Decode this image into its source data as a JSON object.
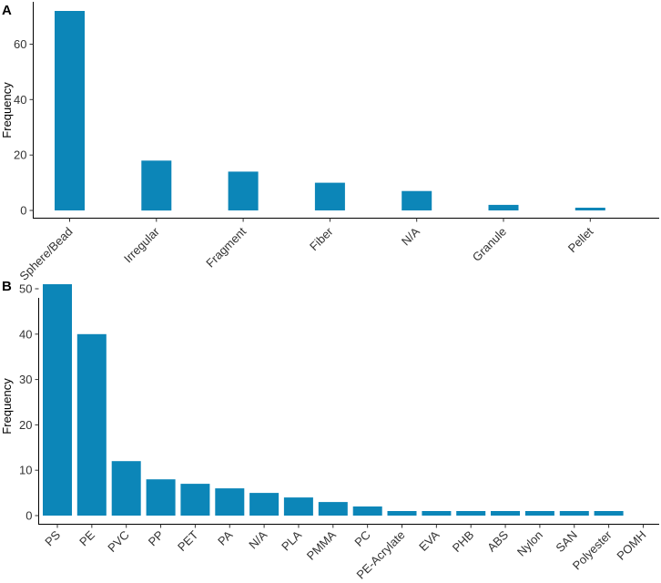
{
  "chart_data": [
    {
      "panel_label": "A",
      "type": "bar",
      "title": "",
      "xlabel": "",
      "ylabel": "Frequency",
      "ylim": [
        0,
        72
      ],
      "yticks": [
        0,
        20,
        40,
        60
      ],
      "grid": false,
      "categories": [
        "Sphere/Bead",
        "Irregular",
        "Fragment",
        "Fiber",
        "N/A",
        "Granule",
        "Pellet"
      ],
      "values": [
        72,
        18,
        14,
        10,
        7,
        2,
        1
      ],
      "color": "#0c86b8"
    },
    {
      "panel_label": "B",
      "type": "bar",
      "title": "",
      "xlabel": "",
      "ylabel": "Frequency",
      "ylim": [
        0,
        51
      ],
      "yticks": [
        0,
        10,
        20,
        30,
        40,
        50
      ],
      "grid": false,
      "categories": [
        "PS",
        "PE",
        "PVC",
        "PP",
        "PET",
        "PA",
        "N/A",
        "PLA",
        "PMMA",
        "PC",
        "PE-Acrylate",
        "EVA",
        "PHB",
        "ABS",
        "Nylon",
        "SAN",
        "Polyester",
        "POMH"
      ],
      "values": [
        51,
        40,
        12,
        8,
        7,
        6,
        5,
        4,
        3,
        2,
        1,
        1,
        1,
        1,
        1,
        1,
        1,
        0
      ],
      "color": "#0c86b8"
    }
  ]
}
